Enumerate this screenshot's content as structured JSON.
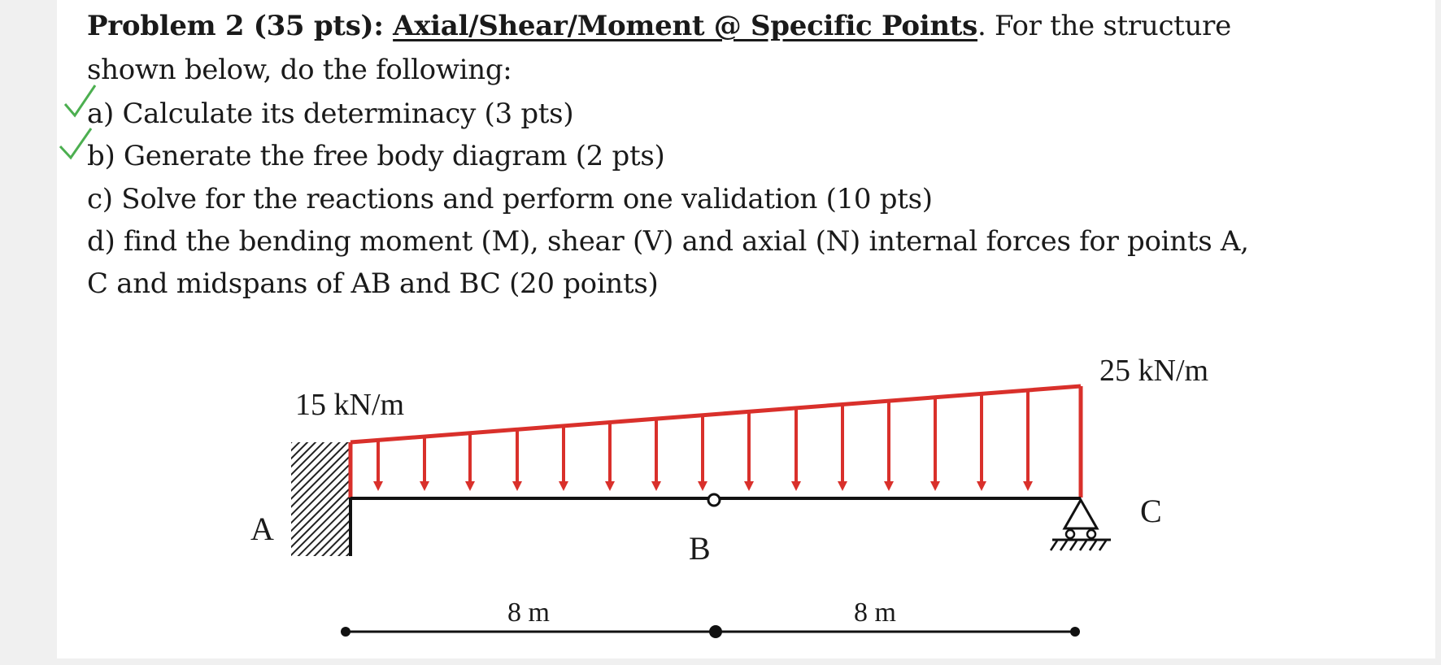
{
  "problem": {
    "title_prefix": "Problem 2 (35 pts): ",
    "title_topic": "Axial/Shear/Moment @ Specific Points",
    "title_suffix": ". For the structure",
    "intro": "shown below, do the following:",
    "items": [
      {
        "label": "a) Calculate its determinacy (3 pts)",
        "checked": true
      },
      {
        "label": "b) Generate the free body diagram (2 pts)",
        "checked": true
      },
      {
        "label": "c) Solve for the reactions and perform one validation (10 pts)",
        "checked": false
      },
      {
        "label": "d) find the bending moment (M), shear (V) and axial (N) internal forces for points A,",
        "checked": false
      },
      {
        "label": "C and midspans of AB and BC (20 points)",
        "checked": false
      }
    ]
  },
  "diagram": {
    "load_left_label": "15 kN/m",
    "load_right_label": "25 kN/m",
    "node_a": "A",
    "node_b": "B",
    "node_c": "C",
    "span_ab": "8 m",
    "span_bc": "8 m",
    "colors": {
      "load": "#d9302b",
      "check": "#4caf50",
      "beam": "#111111"
    }
  }
}
